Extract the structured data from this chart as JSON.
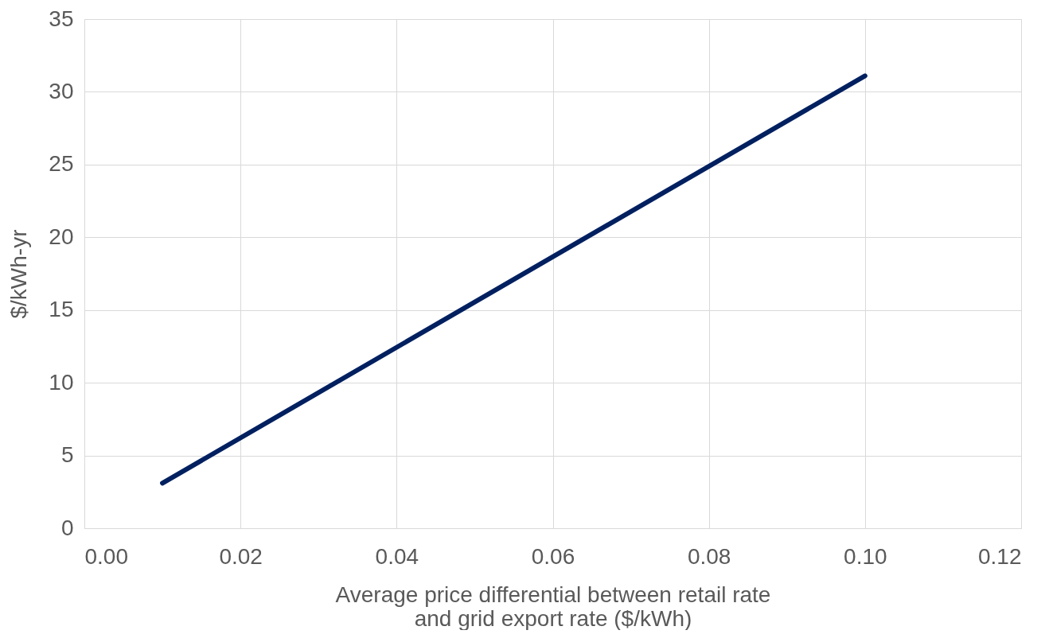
{
  "chart_data": {
    "type": "line",
    "xlabel": "Average price differential between retail rate and grid export rate ($/kWh)",
    "ylabel": "$/kWh-yr",
    "x": [
      0.01,
      0.1
    ],
    "series": [
      {
        "color": "#002060",
        "values": [
          3.1,
          31.1
        ]
      }
    ],
    "xlim": [
      0,
      0.12
    ],
    "xticks": [
      {
        "value": 0,
        "label": "0.00"
      },
      {
        "value": 0.02,
        "label": "0.02"
      },
      {
        "value": 0.04,
        "label": "0.04"
      },
      {
        "value": 0.06,
        "label": "0.06"
      },
      {
        "value": 0.08,
        "label": "0.08"
      },
      {
        "value": 0.1,
        "label": "0.10"
      },
      {
        "value": 0.12,
        "label": "0.12"
      }
    ],
    "ylim": [
      0,
      35
    ],
    "yticks": [
      0,
      5,
      10,
      15,
      20,
      25,
      30,
      35
    ],
    "grid": true,
    "marker": "none",
    "line_style": "solid"
  }
}
